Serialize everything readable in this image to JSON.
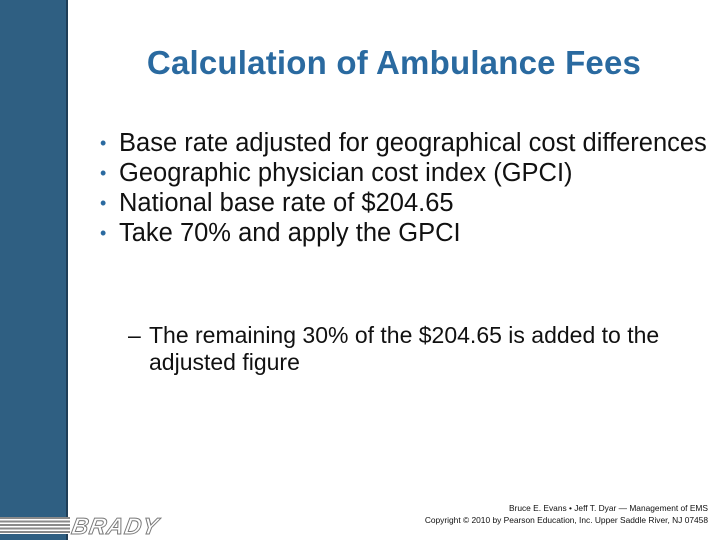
{
  "title": "Calculation of Ambulance Fees",
  "bullets": [
    "Base rate adjusted for geographical cost differences",
    "Geographic physician cost index (GPCI)",
    "National base rate of $204.65",
    "Take 70% and apply the GPCI"
  ],
  "sub_bullet": {
    "dash": "–",
    "text": "The remaining 30% of the $204.65 is added to the adjusted figure"
  },
  "bullet_glyph": "•",
  "logo": "BRADY",
  "credit": {
    "line1": "Bruce E. Evans • Jeff T. Dyar — Management of EMS",
    "line2": "Copyright © 2010 by Pearson Education, Inc. Upper Saddle River, NJ 07458"
  },
  "colors": {
    "title": "#2a6aa0",
    "sidebar": "#2f5f82"
  }
}
